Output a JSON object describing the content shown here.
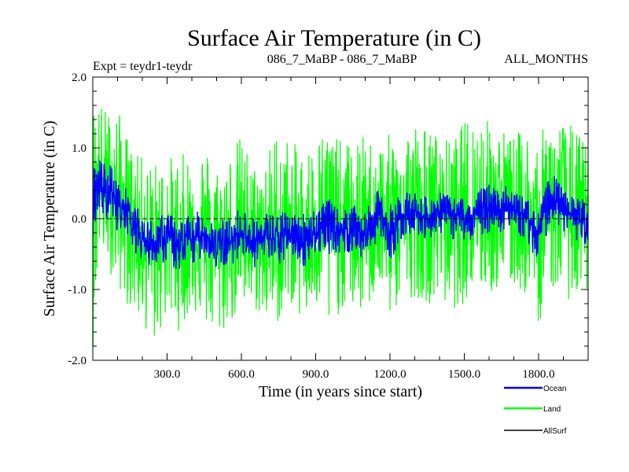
{
  "chart_data": {
    "type": "line",
    "title": "Surface Air Temperature (in C)",
    "subtitle_left": "Expt = teydr1-teydr",
    "subtitle_center": "086_7_MaBP - 086_7_MaBP",
    "subtitle_right": "ALL_MONTHS",
    "xlabel": "Time (in years since start)",
    "ylabel": "Surface Air Temperature (in C)",
    "xlim": [
      0,
      2000
    ],
    "ylim": [
      -2.0,
      2.0
    ],
    "x_ticks": [
      300,
      600,
      900,
      1200,
      1500,
      1800
    ],
    "x_tick_labels": [
      "300.0",
      "600.0",
      "900.0",
      "1200.0",
      "1500.0",
      "1800.0"
    ],
    "y_ticks": [
      -2.0,
      -1.0,
      0.0,
      1.0,
      2.0
    ],
    "y_tick_labels": [
      "-2.0",
      "-1.0",
      "0.0",
      "1.0",
      "2.0"
    ],
    "legend_position": "bottom-right",
    "series": [
      {
        "name": "Land",
        "color": "#00ff00",
        "x": [
          0,
          25,
          50,
          75,
          100,
          125,
          150,
          175,
          200,
          250,
          300,
          350,
          400,
          450,
          500,
          550,
          600,
          650,
          700,
          750,
          800,
          850,
          900,
          950,
          1000,
          1050,
          1100,
          1150,
          1200,
          1250,
          1300,
          1350,
          1400,
          1450,
          1500,
          1550,
          1600,
          1650,
          1700,
          1750,
          1800,
          1850,
          1900,
          1950,
          2000
        ],
        "values": [
          0.3,
          0.55,
          0.35,
          0.45,
          0.15,
          0.25,
          0.05,
          -0.1,
          -0.3,
          -0.35,
          -0.25,
          -0.4,
          -0.3,
          -0.2,
          -0.4,
          -0.35,
          -0.15,
          -0.35,
          -0.25,
          -0.3,
          -0.2,
          -0.3,
          -0.2,
          -0.1,
          -0.15,
          -0.1,
          -0.25,
          0.1,
          -0.2,
          0.05,
          0.1,
          0.0,
          0.1,
          0.05,
          0.0,
          0.05,
          0.15,
          0.2,
          0.1,
          0.05,
          -0.2,
          0.35,
          0.1,
          0.0,
          -0.05
        ],
        "max": [
          1.7,
          1.7,
          1.6,
          1.5,
          1.6,
          1.3,
          1.1,
          0.9,
          0.9,
          0.8,
          0.9,
          0.9,
          1.0,
          1.1,
          0.8,
          1.0,
          1.2,
          0.8,
          0.9,
          1.4,
          1.1,
          1.0,
          1.2,
          1.4,
          1.1,
          1.1,
          1.2,
          1.1,
          1.2,
          1.3,
          1.4,
          1.3,
          1.2,
          1.1,
          1.4,
          1.6,
          1.4,
          1.3,
          1.2,
          1.3,
          1.2,
          1.4,
          1.4,
          1.3,
          1.1
        ],
        "min": [
          -1.9,
          -0.5,
          -0.6,
          -0.8,
          -1.0,
          -1.1,
          -1.3,
          -1.4,
          -1.5,
          -1.8,
          -1.4,
          -1.6,
          -1.3,
          -1.5,
          -1.8,
          -1.5,
          -1.4,
          -1.3,
          -1.5,
          -1.5,
          -1.2,
          -1.5,
          -1.3,
          -1.7,
          -1.3,
          -1.3,
          -1.4,
          -1.0,
          -1.4,
          -1.2,
          -1.1,
          -1.2,
          -1.2,
          -1.3,
          -1.2,
          -1.0,
          -1.1,
          -1.0,
          -1.0,
          -1.1,
          -1.5,
          -1.0,
          -1.1,
          -1.2,
          -1.2
        ]
      },
      {
        "name": "Ocean",
        "color": "#0000ff",
        "x": [
          0,
          25,
          50,
          75,
          100,
          125,
          150,
          175,
          200,
          250,
          300,
          350,
          400,
          450,
          500,
          550,
          600,
          650,
          700,
          750,
          800,
          850,
          900,
          950,
          1000,
          1050,
          1100,
          1150,
          1200,
          1250,
          1300,
          1350,
          1400,
          1450,
          1500,
          1550,
          1600,
          1650,
          1700,
          1750,
          1800,
          1850,
          1900,
          1950,
          2000
        ],
        "values": [
          0.3,
          0.55,
          0.35,
          0.45,
          0.15,
          0.25,
          0.05,
          -0.1,
          -0.3,
          -0.35,
          -0.25,
          -0.4,
          -0.3,
          -0.2,
          -0.4,
          -0.35,
          -0.15,
          -0.35,
          -0.25,
          -0.3,
          -0.2,
          -0.3,
          -0.2,
          -0.1,
          -0.15,
          -0.1,
          -0.25,
          0.1,
          -0.2,
          0.05,
          0.1,
          0.0,
          0.1,
          0.05,
          0.0,
          0.05,
          0.15,
          0.2,
          0.1,
          0.05,
          -0.2,
          0.35,
          0.1,
          0.0,
          -0.05
        ],
        "max": [
          0.7,
          0.9,
          0.8,
          0.8,
          0.5,
          0.5,
          0.3,
          0.2,
          0.0,
          0.0,
          0.1,
          0.0,
          0.1,
          0.1,
          0.0,
          0.0,
          0.2,
          0.0,
          0.1,
          0.1,
          0.1,
          0.1,
          0.2,
          0.3,
          0.1,
          0.2,
          0.1,
          0.4,
          0.2,
          0.4,
          0.4,
          0.3,
          0.4,
          0.3,
          0.3,
          0.4,
          0.5,
          0.5,
          0.4,
          0.3,
          0.1,
          0.7,
          0.4,
          0.3,
          0.3
        ],
        "min": [
          -0.3,
          0.1,
          0.0,
          0.0,
          -0.2,
          -0.1,
          -0.3,
          -0.5,
          -0.6,
          -0.7,
          -0.6,
          -0.8,
          -0.7,
          -0.5,
          -0.7,
          -0.7,
          -0.5,
          -0.7,
          -0.6,
          -0.7,
          -0.5,
          -0.7,
          -0.5,
          -0.5,
          -0.5,
          -0.5,
          -0.6,
          -0.3,
          -0.6,
          -0.3,
          -0.2,
          -0.3,
          -0.2,
          -0.3,
          -0.3,
          -0.3,
          -0.2,
          -0.2,
          -0.2,
          -0.3,
          -0.7,
          0.0,
          -0.2,
          -0.3,
          -0.4
        ]
      },
      {
        "name": "AllSurf",
        "color": "#000000",
        "x": [
          0,
          2000
        ],
        "values": [
          0.0,
          0.0
        ]
      }
    ]
  }
}
